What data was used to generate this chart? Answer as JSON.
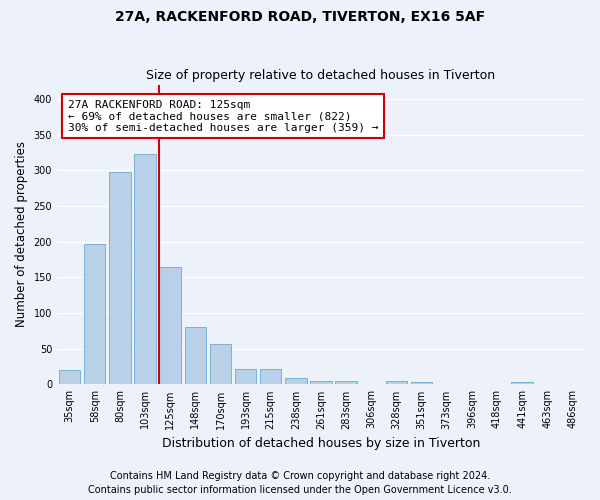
{
  "title": "27A, RACKENFORD ROAD, TIVERTON, EX16 5AF",
  "subtitle": "Size of property relative to detached houses in Tiverton",
  "xlabel": "Distribution of detached houses by size in Tiverton",
  "ylabel": "Number of detached properties",
  "bins": [
    "35sqm",
    "58sqm",
    "80sqm",
    "103sqm",
    "125sqm",
    "148sqm",
    "170sqm",
    "193sqm",
    "215sqm",
    "238sqm",
    "261sqm",
    "283sqm",
    "306sqm",
    "328sqm",
    "351sqm",
    "373sqm",
    "396sqm",
    "418sqm",
    "441sqm",
    "463sqm",
    "486sqm"
  ],
  "values": [
    20,
    197,
    297,
    323,
    165,
    80,
    57,
    22,
    22,
    9,
    5,
    5,
    0,
    5,
    3,
    0,
    0,
    0,
    3,
    0,
    0
  ],
  "bar_color": "#b8d0e8",
  "bar_edge_color": "#6aaad4",
  "vline_bin_index": 4,
  "vline_color": "#cc0000",
  "annotation_line1": "27A RACKENFORD ROAD: 125sqm",
  "annotation_line2": "← 69% of detached houses are smaller (822)",
  "annotation_line3": "30% of semi-detached houses are larger (359) →",
  "annotation_box_color": "#cc0000",
  "ylim": [
    0,
    420
  ],
  "yticks": [
    0,
    50,
    100,
    150,
    200,
    250,
    300,
    350,
    400
  ],
  "footer1": "Contains HM Land Registry data © Crown copyright and database right 2024.",
  "footer2": "Contains public sector information licensed under the Open Government Licence v3.0.",
  "bg_color": "#edf2fa",
  "grid_color": "#ffffff",
  "title_fontsize": 10,
  "subtitle_fontsize": 9,
  "xlabel_fontsize": 9,
  "ylabel_fontsize": 8.5,
  "tick_fontsize": 7,
  "annotation_fontsize": 8,
  "footer_fontsize": 7
}
